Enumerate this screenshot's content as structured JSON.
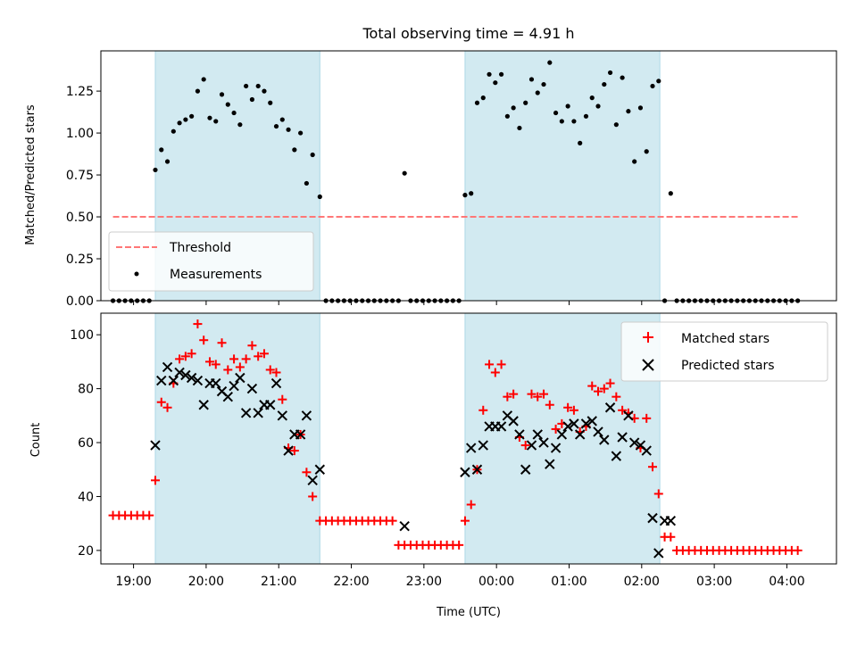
{
  "chart_data": [
    {
      "type": "scatter",
      "title": "Total observing time = 4.91 h",
      "ylabel": "Matched/Predicted stars",
      "xlim": [
        "18:33",
        "04:41"
      ],
      "ylim": [
        0,
        1.49
      ],
      "yticks": [
        "0.00",
        "0.25",
        "0.50",
        "0.75",
        "1.00",
        "1.25"
      ],
      "ytick_values": [
        0,
        0.25,
        0.5,
        0.75,
        1.0,
        1.25
      ],
      "xtick_times": [
        "19:00",
        "20:00",
        "21:00",
        "22:00",
        "23:00",
        "00:00",
        "01:00",
        "02:00",
        "03:00",
        "04:00"
      ],
      "shaded_intervals": [
        [
          "19:18",
          "21:34"
        ],
        [
          "23:34",
          "02:15"
        ]
      ],
      "shade_color": "#add8e6",
      "threshold": {
        "name": "Threshold",
        "value": 0.5,
        "x_range": [
          "18:43",
          "04:09"
        ],
        "color": "#ff7777",
        "style": "dashed"
      },
      "legend_position": "lower-left",
      "series": [
        {
          "name": "Measurements",
          "marker": "dot",
          "color": "#000000",
          "x": [
            "18:43",
            "18:48",
            "18:53",
            "18:58",
            "19:03",
            "19:08",
            "19:13",
            "19:18",
            "19:23",
            "19:28",
            "19:33",
            "19:38",
            "19:43",
            "19:48",
            "19:53",
            "19:58",
            "20:03",
            "20:08",
            "20:13",
            "20:18",
            "20:23",
            "20:28",
            "20:33",
            "20:38",
            "20:43",
            "20:48",
            "20:53",
            "20:58",
            "21:03",
            "21:08",
            "21:13",
            "21:18",
            "21:23",
            "21:28",
            "21:34",
            "21:39",
            "21:44",
            "21:49",
            "21:54",
            "21:59",
            "22:04",
            "22:09",
            "22:14",
            "22:19",
            "22:24",
            "22:29",
            "22:34",
            "22:39",
            "22:44",
            "22:49",
            "22:54",
            "22:59",
            "23:04",
            "23:09",
            "23:14",
            "23:19",
            "23:24",
            "23:29",
            "23:34",
            "23:39",
            "23:44",
            "23:49",
            "23:54",
            "23:59",
            "00:04",
            "00:09",
            "00:14",
            "00:19",
            "00:24",
            "00:29",
            "00:34",
            "00:39",
            "00:44",
            "00:49",
            "00:54",
            "00:59",
            "01:04",
            "01:09",
            "01:14",
            "01:19",
            "01:24",
            "01:29",
            "01:34",
            "01:39",
            "01:44",
            "01:49",
            "01:54",
            "01:59",
            "02:04",
            "02:09",
            "02:14",
            "02:19",
            "02:24",
            "02:29",
            "02:34",
            "02:39",
            "02:44",
            "02:49",
            "02:54",
            "02:59",
            "03:04",
            "03:09",
            "03:14",
            "03:19",
            "03:24",
            "03:29",
            "03:34",
            "03:39",
            "03:44",
            "03:49",
            "03:54",
            "03:59",
            "04:04",
            "04:09"
          ],
          "y": [
            0,
            0,
            0,
            0,
            0,
            0,
            0,
            0.78,
            0.9,
            0.83,
            1.01,
            1.06,
            1.08,
            1.1,
            1.25,
            1.32,
            1.09,
            1.07,
            1.23,
            1.17,
            1.12,
            1.05,
            1.28,
            1.2,
            1.28,
            1.25,
            1.18,
            1.04,
            1.08,
            1.02,
            0.9,
            1.0,
            0.7,
            0.87,
            0.62,
            0,
            0,
            0,
            0,
            0,
            0,
            0,
            0,
            0,
            0,
            0,
            0,
            0,
            0.76,
            0,
            0,
            0,
            0,
            0,
            0,
            0,
            0,
            0,
            0.63,
            0.64,
            1.18,
            1.21,
            1.35,
            1.3,
            1.35,
            1.1,
            1.15,
            1.03,
            1.18,
            1.32,
            1.24,
            1.29,
            1.42,
            1.12,
            1.07,
            1.16,
            1.07,
            0.94,
            1.1,
            1.21,
            1.16,
            1.29,
            1.36,
            1.05,
            1.33,
            1.13,
            0.83,
            1.15,
            0.89,
            1.28,
            1.31,
            0,
            0.64,
            0,
            0,
            0,
            0,
            0,
            0,
            0,
            0,
            0,
            0,
            0,
            0,
            0,
            0,
            0,
            0,
            0,
            0,
            0,
            0,
            0
          ]
        }
      ]
    },
    {
      "type": "scatter",
      "xlabel": "Time (UTC)",
      "ylabel": "Count",
      "xlim": [
        "18:33",
        "04:41"
      ],
      "ylim": [
        15,
        108
      ],
      "yticks": [
        "20",
        "40",
        "60",
        "80",
        "100"
      ],
      "ytick_values": [
        20,
        40,
        60,
        80,
        100
      ],
      "xticks": [
        "19:00",
        "20:00",
        "21:00",
        "22:00",
        "23:00",
        "00:00",
        "01:00",
        "02:00",
        "03:00",
        "04:00"
      ],
      "shaded_intervals": [
        [
          "19:18",
          "21:34"
        ],
        [
          "23:34",
          "02:15"
        ]
      ],
      "legend_position": "upper-right",
      "series": [
        {
          "name": "Matched stars",
          "marker": "plus",
          "color": "#ff0000",
          "x": [
            "18:43",
            "18:48",
            "18:53",
            "18:58",
            "19:03",
            "19:08",
            "19:13",
            "19:18",
            "19:23",
            "19:28",
            "19:33",
            "19:38",
            "19:43",
            "19:48",
            "19:53",
            "19:58",
            "20:03",
            "20:08",
            "20:13",
            "20:18",
            "20:23",
            "20:28",
            "20:33",
            "20:38",
            "20:43",
            "20:48",
            "20:53",
            "20:58",
            "21:03",
            "21:08",
            "21:13",
            "21:18",
            "21:23",
            "21:28",
            "21:34",
            "21:39",
            "21:44",
            "21:49",
            "21:54",
            "21:59",
            "22:04",
            "22:09",
            "22:14",
            "22:19",
            "22:24",
            "22:29",
            "22:34",
            "22:39",
            "22:44",
            "22:49",
            "22:54",
            "22:59",
            "23:04",
            "23:09",
            "23:14",
            "23:19",
            "23:24",
            "23:29",
            "23:34",
            "23:39",
            "23:44",
            "23:49",
            "23:54",
            "23:59",
            "00:04",
            "00:09",
            "00:14",
            "00:19",
            "00:24",
            "00:29",
            "00:34",
            "00:39",
            "00:44",
            "00:49",
            "00:54",
            "00:59",
            "01:04",
            "01:09",
            "01:14",
            "01:19",
            "01:24",
            "01:29",
            "01:34",
            "01:39",
            "01:44",
            "01:49",
            "01:54",
            "01:59",
            "02:04",
            "02:09",
            "02:14",
            "02:19",
            "02:24",
            "02:29",
            "02:34",
            "02:39",
            "02:44",
            "02:49",
            "02:54",
            "02:59",
            "03:04",
            "03:09",
            "03:14",
            "03:19",
            "03:24",
            "03:29",
            "03:34",
            "03:39",
            "03:44",
            "03:49",
            "03:54",
            "03:59",
            "04:04",
            "04:09"
          ],
          "y": [
            33,
            33,
            33,
            33,
            33,
            33,
            33,
            46,
            75,
            73,
            82,
            91,
            92,
            93,
            104,
            98,
            90,
            89,
            97,
            87,
            91,
            88,
            91,
            96,
            92,
            93,
            87,
            86,
            76,
            58,
            57,
            63,
            49,
            40,
            31,
            31,
            31,
            31,
            31,
            31,
            31,
            31,
            31,
            31,
            31,
            31,
            31,
            22,
            22,
            22,
            22,
            22,
            22,
            22,
            22,
            22,
            22,
            22,
            31,
            37,
            50,
            72,
            89,
            86,
            89,
            77,
            78,
            62,
            59,
            78,
            77,
            78,
            74,
            65,
            67,
            73,
            72,
            64,
            66,
            81,
            79,
            80,
            82,
            77,
            72,
            71,
            69,
            58,
            69,
            51,
            41,
            25,
            25,
            20,
            20,
            20,
            20,
            20,
            20,
            20,
            20,
            20,
            20,
            20,
            20,
            20,
            20,
            20,
            20,
            20,
            20,
            20,
            20,
            20
          ]
        },
        {
          "name": "Predicted stars",
          "marker": "x",
          "color": "#000000",
          "x": [
            "19:18",
            "19:23",
            "19:28",
            "19:33",
            "19:38",
            "19:43",
            "19:48",
            "19:53",
            "19:58",
            "20:03",
            "20:08",
            "20:13",
            "20:18",
            "20:23",
            "20:28",
            "20:33",
            "20:38",
            "20:43",
            "20:48",
            "20:53",
            "20:58",
            "21:03",
            "21:08",
            "21:13",
            "21:18",
            "21:23",
            "21:28",
            "21:34",
            "22:44",
            "23:34",
            "23:39",
            "23:44",
            "23:49",
            "23:54",
            "23:59",
            "00:04",
            "00:09",
            "00:14",
            "00:19",
            "00:24",
            "00:29",
            "00:34",
            "00:39",
            "00:44",
            "00:49",
            "00:54",
            "00:59",
            "01:04",
            "01:09",
            "01:14",
            "01:19",
            "01:24",
            "01:29",
            "01:34",
            "01:39",
            "01:44",
            "01:49",
            "01:54",
            "01:59",
            "02:04",
            "02:09",
            "02:14",
            "02:19",
            "02:24"
          ],
          "y": [
            59,
            83,
            88,
            83,
            86,
            85,
            84,
            83,
            74,
            82,
            82,
            79,
            77,
            81,
            84,
            71,
            80,
            71,
            74,
            74,
            82,
            70,
            57,
            63,
            63,
            70,
            46,
            50,
            29,
            49,
            58,
            50,
            59,
            66,
            66,
            66,
            70,
            68,
            63,
            50,
            59,
            63,
            60,
            52,
            58,
            63,
            66,
            67,
            63,
            67,
            68,
            64,
            61,
            73,
            55,
            62,
            70,
            60,
            59,
            57,
            32,
            19,
            31,
            31
          ]
        }
      ]
    }
  ]
}
